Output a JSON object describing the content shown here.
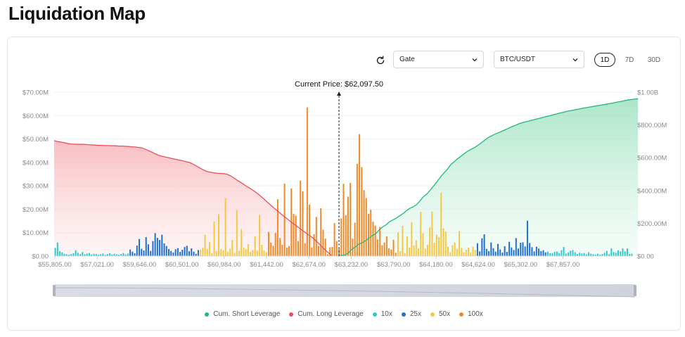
{
  "page": {
    "title": "Liquidation Map"
  },
  "controls": {
    "exchange": "Gate",
    "pair": "BTC/USDT",
    "timeframes": [
      "1D",
      "7D",
      "30D"
    ],
    "active_timeframe": "1D"
  },
  "colors": {
    "short": "#1fb87a",
    "long": "#e8505b",
    "x10": "#2ec9c9",
    "x25": "#1f6fd1",
    "x50": "#f5c842",
    "x100": "#ee8a2a"
  },
  "chart_data": {
    "type": "bar",
    "title": "",
    "current_price_label": "Current Price: $62,097.50",
    "current_price_index": 125,
    "x_tick_labels": [
      "$55,805.00",
      "$57,021.00",
      "$59,646.00",
      "$60,501.00",
      "$60,984.00",
      "$61,442.00",
      "$62,674.00",
      "$63,232.00",
      "$63,790.00",
      "$64,180.00",
      "$64,624.00",
      "$65,302.00",
      "$67,857.00"
    ],
    "left_axis": {
      "ticks": [
        "$0.00",
        "$10.00M",
        "$20.00M",
        "$30.00M",
        "$40.00M",
        "$50.00M",
        "$60.00M",
        "$70.00M"
      ],
      "ylim": [
        0,
        70
      ]
    },
    "right_axis": {
      "ticks": [
        "$0.00",
        "$200.00M",
        "$400.00M",
        "$600.00M",
        "$800.00M",
        "$1.00B"
      ],
      "ylim": [
        0,
        1000
      ]
    },
    "legend": [
      "Cum. Short Leverage",
      "Cum. Long Leverage",
      "10x",
      "25x",
      "50x",
      "100x"
    ],
    "bar_levels": [
      "10x",
      "10x",
      "10x",
      "10x",
      "10x",
      "10x",
      "10x",
      "10x",
      "10x",
      "10x",
      "10x",
      "10x",
      "10x",
      "10x",
      "10x",
      "10x",
      "10x",
      "10x",
      "10x",
      "10x",
      "10x",
      "10x",
      "10x",
      "10x",
      "10x",
      "10x",
      "10x",
      "10x",
      "10x",
      "10x",
      "10x",
      "10x",
      "10x",
      "25x",
      "25x",
      "25x",
      "25x",
      "25x",
      "25x",
      "25x",
      "25x",
      "25x",
      "25x",
      "25x",
      "25x",
      "25x",
      "25x",
      "25x",
      "25x",
      "25x",
      "25x",
      "25x",
      "25x",
      "25x",
      "25x",
      "25x",
      "25x",
      "25x",
      "25x",
      "25x",
      "25x",
      "25x",
      "25x",
      "25x",
      "50x",
      "50x",
      "50x",
      "50x",
      "50x",
      "50x",
      "50x",
      "50x",
      "50x",
      "50x",
      "50x",
      "50x",
      "50x",
      "50x",
      "50x",
      "50x",
      "50x",
      "50x",
      "50x",
      "50x",
      "50x",
      "50x",
      "50x",
      "50x",
      "50x",
      "50x",
      "50x",
      "50x",
      "50x",
      "50x",
      "100x",
      "100x",
      "100x",
      "100x",
      "100x",
      "100x",
      "100x",
      "100x",
      "100x",
      "100x",
      "100x",
      "100x",
      "100x",
      "100x",
      "100x",
      "100x",
      "100x",
      "100x",
      "100x",
      "100x",
      "100x",
      "100x",
      "100x",
      "100x",
      "100x",
      "100x",
      "100x",
      "100x",
      "100x",
      "100x",
      "100x",
      "100x",
      "100x",
      "100x",
      "100x",
      "100x",
      "100x",
      "100x",
      "100x",
      "100x",
      "100x",
      "100x",
      "100x",
      "100x",
      "100x",
      "100x",
      "100x",
      "100x",
      "100x",
      "100x",
      "100x",
      "100x",
      "100x",
      "100x",
      "100x",
      "100x",
      "100x",
      "50x",
      "50x",
      "50x",
      "50x",
      "50x",
      "50x",
      "50x",
      "50x",
      "50x",
      "50x",
      "50x",
      "50x",
      "50x",
      "50x",
      "50x",
      "50x",
      "50x",
      "50x",
      "50x",
      "50x",
      "50x",
      "50x",
      "50x",
      "50x",
      "50x",
      "50x",
      "50x",
      "50x",
      "50x",
      "50x",
      "50x",
      "50x",
      "50x",
      "50x",
      "50x",
      "25x",
      "25x",
      "25x",
      "25x",
      "25x",
      "25x",
      "25x",
      "25x",
      "25x",
      "25x",
      "25x",
      "25x",
      "25x",
      "25x",
      "25x",
      "25x",
      "25x",
      "25x",
      "25x",
      "25x",
      "25x",
      "25x",
      "25x",
      "25x",
      "25x",
      "25x",
      "25x",
      "25x",
      "25x",
      "25x",
      "25x",
      "10x",
      "10x",
      "10x",
      "10x",
      "10x",
      "10x",
      "10x",
      "10x",
      "10x",
      "10x",
      "10x",
      "10x",
      "10x",
      "10x",
      "10x",
      "10x",
      "10x",
      "10x",
      "10x",
      "10x",
      "10x",
      "10x",
      "10x",
      "10x",
      "10x",
      "10x",
      "10x",
      "10x",
      "10x",
      "10x",
      "10x",
      "10x",
      "10x",
      "10x",
      "10x",
      "10x",
      "10x",
      "10x",
      "10x",
      "10x",
      "10x",
      "10x",
      "10x",
      "10x",
      "10x",
      "10x",
      "10x",
      "10x",
      "10x",
      "10x"
    ],
    "bar_values": [
      3.5,
      5.8,
      2.1,
      1.6,
      1.0,
      0.8,
      0.6,
      0.9,
      1.2,
      2.5,
      1.4,
      0.9,
      1.7,
      0.8,
      1.1,
      1.3,
      0.7,
      1.0,
      0.9,
      0.6,
      0.8,
      1.1,
      0.5,
      0.9,
      1.2,
      0.7,
      1.0,
      0.8,
      0.6,
      0.9,
      1.3,
      0.7,
      1.1,
      2.8,
      1.9,
      1.2,
      4.5,
      7.3,
      3.1,
      2.4,
      8.1,
      5.0,
      2.2,
      6.4,
      9.8,
      7.8,
      6.9,
      9.1,
      5.4,
      4.3,
      3.0,
      2.2,
      1.5,
      2.9,
      3.4,
      1.8,
      2.7,
      3.9,
      4.4,
      2.1,
      3.3,
      1.9,
      1.0,
      2.6,
      2.7,
      3.6,
      9.1,
      3.0,
      6.0,
      1.3,
      14.7,
      2.1,
      17.9,
      3.0,
      2.5,
      24.7,
      1.9,
      3.1,
      6.9,
      1.4,
      19.6,
      2.2,
      11.5,
      3.6,
      3.0,
      5.1,
      1.8,
      2.6,
      8.5,
      2.3,
      17.6,
      4.8,
      2.3,
      1.7,
      10.3,
      5.8,
      4.4,
      9.9,
      24.3,
      7.7,
      4.8,
      31.0,
      3.6,
      4.3,
      28.9,
      18.0,
      17.3,
      6.4,
      32.2,
      27.7,
      5.5,
      63.5,
      22.0,
      3.7,
      9.4,
      16.7,
      4.3,
      20.4,
      11.3,
      7.5,
      0.8,
      3.7,
      3.9,
      14.1,
      6.4,
      3.2,
      16.1,
      30.9,
      17.5,
      25.4,
      31.2,
      7.5,
      14.3,
      39.4,
      52.1,
      38.0,
      28.2,
      24.8,
      18.0,
      19.8,
      14.7,
      13.0,
      7.1,
      12.4,
      4.6,
      5.8,
      8.4,
      3.3,
      2.8,
      7.0,
      1.4,
      10.1,
      2.1,
      12.9,
      1.3,
      8.4,
      3.7,
      14.5,
      4.5,
      6.8,
      3.3,
      18.9,
      9.8,
      3.2,
      4.8,
      12.2,
      19.0,
      5.7,
      9.2,
      8.1,
      27.0,
      11.8,
      10.4,
      4.0,
      1.6,
      4.6,
      5.8,
      3.1,
      10.7,
      3.5,
      1.6,
      2.8,
      3.6,
      1.5,
      4.0,
      2.6,
      5.5,
      2.0,
      7.6,
      9.3,
      3.1,
      2.1,
      5.8,
      3.4,
      1.9,
      5.2,
      2.8,
      1.5,
      4.2,
      1.8,
      6.1,
      3.7,
      2.6,
      7.7,
      3.2,
      5.7,
      5.9,
      4.1,
      15.1,
      5.6,
      3.8,
      2.0,
      4.0,
      3.2,
      2.1,
      2.5,
      1.6,
      1.9,
      1.2,
      1.3,
      1.8,
      2.0,
      1.2,
      2.5,
      3.9,
      1.1,
      1.5,
      2.3,
      2.6,
      1.6,
      0.9,
      1.4,
      1.1,
      1.3,
      0.8,
      1.6,
      1.0,
      0.8,
      0.6,
      1.0,
      0.6,
      0.9,
      1.4,
      2.2,
      0.8,
      3.3,
      1.8,
      1.4,
      2.5,
      2.0,
      3.3,
      2.0,
      3.3,
      0.9,
      1.0
    ],
    "cum_long": [
      49.3,
      48.9,
      48.7,
      48.4,
      48.1,
      47.9,
      47.8,
      47.7,
      47.7,
      47.7,
      47.6,
      47.5,
      47.4,
      47.3,
      47.3,
      47.2,
      47.2,
      47.1,
      47.1,
      47.0,
      47.0,
      46.9,
      46.8,
      46.7,
      46.6,
      46.4,
      46.2,
      45.6,
      45.0,
      44.3,
      43.6,
      43.0,
      42.6,
      42.3,
      42.0,
      41.6,
      41.3,
      41.0,
      40.7,
      40.3,
      40.0,
      39.3,
      38.5,
      37.7,
      36.9,
      36.2,
      35.9,
      35.6,
      35.4,
      35.3,
      35.2,
      35.0,
      34.4,
      33.5,
      32.5,
      31.6,
      30.7,
      29.7,
      28.8,
      27.9,
      26.9,
      25.7,
      24.4,
      23.1,
      21.8,
      20.5,
      19.3,
      18.1,
      16.9,
      15.8,
      14.6,
      13.6,
      12.5,
      11.4,
      10.4,
      9.3,
      8.3,
      7.1,
      5.7,
      4.3,
      2.8,
      1.5,
      0.3
    ],
    "cum_short": [
      2.0,
      4.3,
      6.3,
      20.4,
      42.2,
      55.5,
      73.3,
      81.3,
      94.2,
      109.8,
      125.7,
      136.3,
      160.1,
      178.0,
      190.2,
      208.8,
      220.3,
      231.5,
      245.6,
      259.1,
      276.7,
      290.9,
      301.2,
      313.6,
      337.3,
      362.7,
      378.7,
      403.4,
      428.5,
      454.6,
      482.4,
      506.1,
      529.2,
      557.7,
      575.3,
      593.2,
      608.6,
      625.3,
      639.7,
      651.9,
      661.8,
      676.0,
      691.1,
      707.9,
      722.7,
      733.4,
      744.1,
      752.5,
      761.5,
      770.6,
      779.8,
      789.6,
      797.5,
      806.9,
      813.3,
      819.5,
      824.2,
      830.0,
      834.6,
      840.0,
      845.4,
      850.7,
      856.0,
      861.3,
      866.6,
      872.0,
      877.4,
      882.3,
      886.7,
      890.7,
      894.5,
      898.6,
      902.4,
      906.0,
      909.8,
      913.8,
      917.3,
      920.6,
      924.2,
      927.8,
      931.4,
      935.6,
      939.7,
      943.8,
      948.0,
      951.9,
      955.0,
      957.5,
      960.0
    ]
  }
}
